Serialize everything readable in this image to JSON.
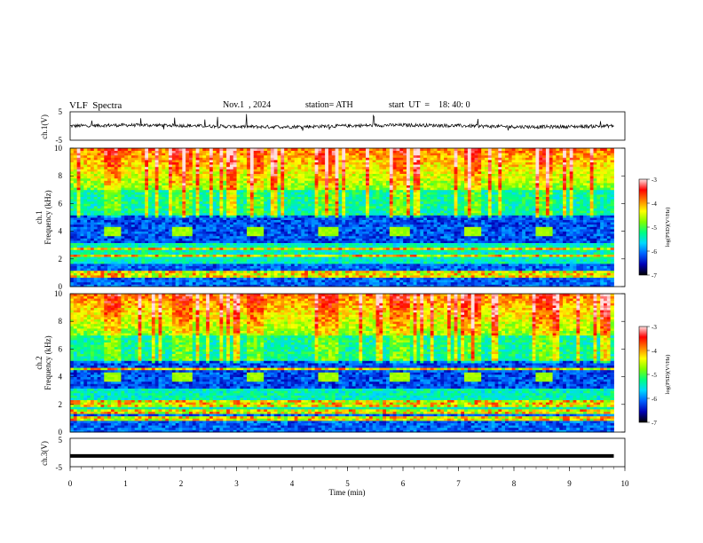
{
  "header": {
    "title": "VLF  Spectra",
    "date": "Nov.1  , 2024",
    "station": "station= ATH",
    "start": "start  UT  =    18: 40: 0"
  },
  "colorbar": {
    "label": "log(PSD)(V²/Hz)",
    "ticks": [
      "-3",
      "-4",
      "-5",
      "-6",
      "-7"
    ],
    "stops": [
      "#000000",
      "#0000b4",
      "#0060ff",
      "#00d8ff",
      "#00ff80",
      "#80ff00",
      "#ffff00",
      "#ff8000",
      "#ff0000",
      "#ffe0e0"
    ]
  },
  "chart_data": [
    {
      "type": "line",
      "name": "ch1-voltage",
      "ylabel": "ch.1(V)",
      "ylim": [
        -5,
        5
      ],
      "yticks": [
        "5",
        "-5"
      ],
      "xlim": [
        0,
        10
      ],
      "approx_level": 0,
      "noise_amplitude": 1.2
    },
    {
      "type": "heatmap",
      "name": "ch1-spectrogram",
      "ylabel_top": "ch.1",
      "ylabel": "Frequency  (kHz)",
      "ylim": [
        0,
        10
      ],
      "yticks": [
        "0",
        "2",
        "4",
        "6",
        "8",
        "10"
      ],
      "xlim": [
        0,
        9.8
      ],
      "colorbar_range": [
        -7,
        -3
      ],
      "bursts_min": [
        0.62,
        1.88,
        3.2,
        4.5,
        5.8,
        7.12,
        8.4
      ],
      "burst_band_khz": [
        3.6,
        4.4
      ],
      "lines_khz": [
        0.7,
        0.9,
        1.1,
        2.2,
        2.7
      ]
    },
    {
      "type": "heatmap",
      "name": "ch2-spectrogram",
      "ylabel_top": "ch.2",
      "ylabel": "Frequency  (kHz)",
      "ylim": [
        0,
        10
      ],
      "yticks": [
        "0",
        "2",
        "4",
        "6",
        "8",
        "10"
      ],
      "xlim": [
        0,
        9.8
      ],
      "colorbar_range": [
        -7,
        -3
      ],
      "bursts_min": [
        0.62,
        1.88,
        3.2,
        4.5,
        5.8,
        7.12,
        8.4
      ],
      "burst_band_khz": [
        3.6,
        4.4
      ],
      "lines_khz": [
        1.0,
        1.5,
        2.0,
        2.2,
        4.6
      ]
    },
    {
      "type": "line",
      "name": "ch3-voltage",
      "ylabel": "ch.3(V)",
      "ylim": [
        -5,
        5
      ],
      "yticks": [
        "5",
        "-5"
      ],
      "xlim": [
        0,
        10
      ],
      "xlabel": "Time  (min)",
      "xticks": [
        "0",
        "1",
        "2",
        "3",
        "4",
        "5",
        "6",
        "7",
        "8",
        "9",
        "10"
      ],
      "approx_level": -1.2
    }
  ]
}
